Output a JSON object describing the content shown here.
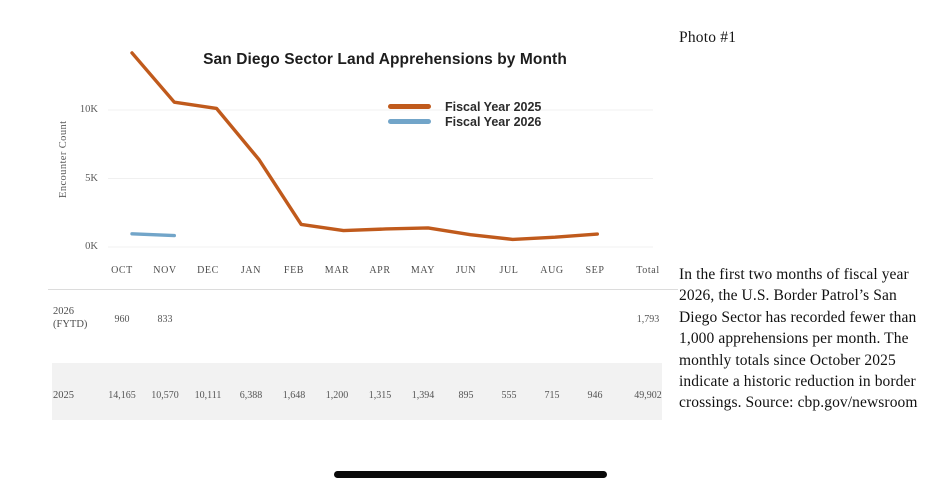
{
  "page": {
    "photo_label": "Photo #1",
    "caption": "In the first two months of fiscal year 2026, the U.S. Border Patrol’s San Diego Sector has recorded fewer than 1,000 apprehensions per month. The monthly totals since October 2025 indicate a historic reduction in border crossings. Source: cbp.gov/newsroom"
  },
  "chart_data": {
    "type": "line",
    "title": "San Diego Sector Land Apprehensions by Month",
    "xlabel": "",
    "ylabel": "Encounter Count",
    "categories": [
      "OCT",
      "NOV",
      "DEC",
      "JAN",
      "FEB",
      "MAR",
      "APR",
      "MAY",
      "JUN",
      "JUL",
      "AUG",
      "SEP"
    ],
    "y_ticks": [
      {
        "label": "10K",
        "value": 10000
      },
      {
        "label": "5K",
        "value": 5000
      },
      {
        "label": "0K",
        "value": 0
      }
    ],
    "ylim": [
      0,
      15000
    ],
    "grid": true,
    "legend_position": "inside-top-right",
    "series": [
      {
        "name": "Fiscal Year 2025",
        "color": "#c05a1c",
        "values": [
          14165,
          10570,
          10111,
          6388,
          1648,
          1200,
          1315,
          1394,
          895,
          555,
          715,
          946
        ]
      },
      {
        "name": "Fiscal Year 2026",
        "color": "#72a5c9",
        "values": [
          960,
          833
        ]
      }
    ]
  },
  "table": {
    "columns": [
      "OCT",
      "NOV",
      "DEC",
      "JAN",
      "FEB",
      "MAR",
      "APR",
      "MAY",
      "JUN",
      "JUL",
      "AUG",
      "SEP",
      "Total"
    ],
    "rows": [
      {
        "label": "2026 (FYTD)",
        "values": [
          "960",
          "833",
          "",
          "",
          "",
          "",
          "",
          "",
          "",
          "",
          "",
          ""
        ],
        "total": "1,793",
        "highlight": false
      },
      {
        "label": "2025",
        "values": [
          "14,165",
          "10,570",
          "10,111",
          "6,388",
          "1,648",
          "1,200",
          "1,315",
          "1,394",
          "895",
          "555",
          "715",
          "946"
        ],
        "total": "49,902",
        "highlight": true
      }
    ]
  }
}
